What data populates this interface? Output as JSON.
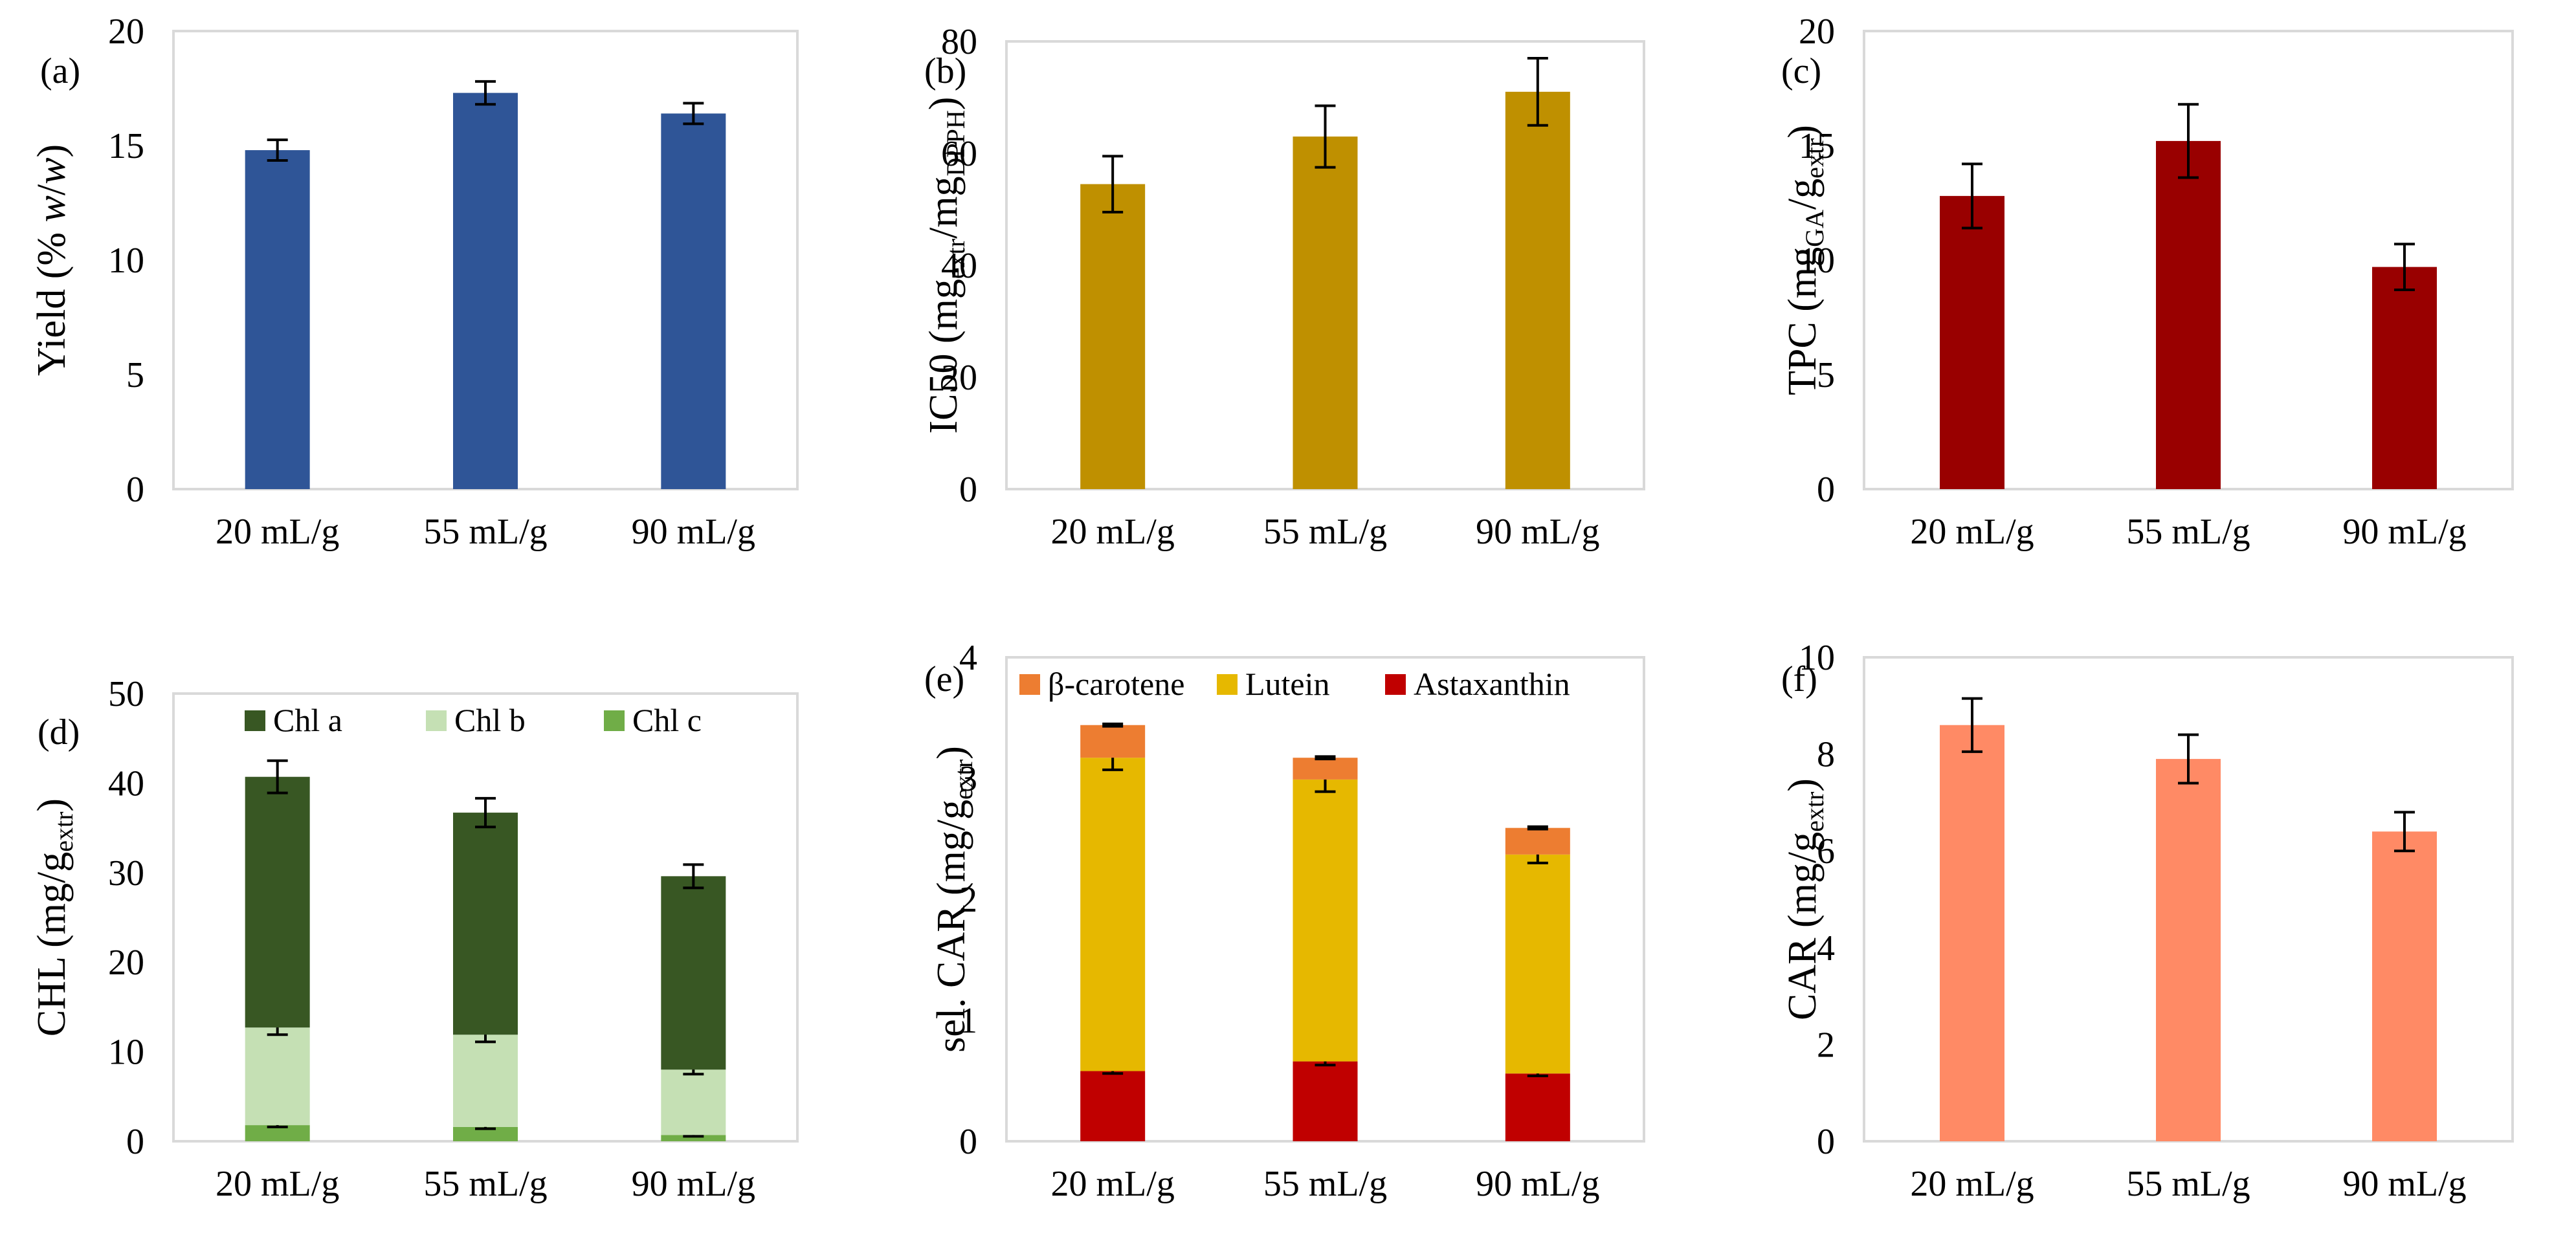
{
  "chart_data": [
    {
      "id": "a",
      "type": "bar",
      "panel_label": "(a)",
      "ylabel": [
        {
          "t": "Yield (% "
        },
        {
          "t": "w",
          "i": true
        },
        {
          "t": "/"
        },
        {
          "t": "w",
          "i": true
        },
        {
          "t": ")"
        }
      ],
      "categories": [
        "20 mL/g",
        "55 mL/g",
        "90 mL/g"
      ],
      "ylim": [
        0,
        20
      ],
      "yticks": [
        0,
        5,
        10,
        15,
        20
      ],
      "series": [
        {
          "name": "Yield",
          "color": "#2F5597",
          "values": [
            14.8,
            17.3,
            16.4
          ],
          "errors": [
            0.45,
            0.5,
            0.45
          ]
        }
      ]
    },
    {
      "id": "b",
      "type": "bar",
      "panel_label": "(b)",
      "ylabel": [
        {
          "t": "IC50 (mg"
        },
        {
          "t": "extr",
          "s": true
        },
        {
          "t": "/mg"
        },
        {
          "t": "DPPH",
          "s": true
        },
        {
          "t": ")"
        }
      ],
      "categories": [
        "20 mL/g",
        "55 mL/g",
        "90 mL/g"
      ],
      "ylim": [
        0,
        80
      ],
      "yticks": [
        0,
        20,
        40,
        60,
        80
      ],
      "series": [
        {
          "name": "IC50",
          "color": "#BF9000",
          "values": [
            54.5,
            63,
            71
          ],
          "errors": [
            5,
            5.5,
            6
          ]
        }
      ]
    },
    {
      "id": "c",
      "type": "bar",
      "panel_label": "(c)",
      "ylabel": [
        {
          "t": "TPC (mg"
        },
        {
          "t": "GA",
          "s": true
        },
        {
          "t": "/g"
        },
        {
          "t": "extr",
          "s": true
        },
        {
          "t": ")"
        }
      ],
      "categories": [
        "20 mL/g",
        "55 mL/g",
        "90 mL/g"
      ],
      "ylim": [
        0,
        20
      ],
      "yticks": [
        0,
        5,
        10,
        15,
        20
      ],
      "series": [
        {
          "name": "TPC",
          "color": "#990000",
          "values": [
            12.8,
            15.2,
            9.7
          ],
          "errors": [
            1.4,
            1.6,
            1.0
          ]
        }
      ]
    },
    {
      "id": "d",
      "type": "bar",
      "stacked": true,
      "panel_label": "(d)",
      "ylabel": [
        {
          "t": "CHL (mg/g"
        },
        {
          "t": "extr",
          "s": true
        },
        {
          "t": ")"
        }
      ],
      "categories": [
        "20 mL/g",
        "55 mL/g",
        "90 mL/g"
      ],
      "ylim": [
        0,
        50
      ],
      "yticks": [
        0,
        10,
        20,
        30,
        40,
        50
      ],
      "legend_position": "top",
      "legend_order": [
        2,
        1,
        0
      ],
      "series": [
        {
          "name": "Chl c",
          "color": "#70AD47",
          "values": [
            1.8,
            1.6,
            0.7
          ],
          "errors": [
            0.2,
            0.2,
            0.15
          ]
        },
        {
          "name": "Chl b",
          "color": "#C5E0B4",
          "values": [
            10.9,
            10.3,
            7.3
          ],
          "errors": [
            0.8,
            0.8,
            0.5
          ]
        },
        {
          "name": "Chl a",
          "color": "#385723",
          "values": [
            28.0,
            24.8,
            21.6
          ],
          "errors": [
            1.8,
            1.6,
            1.3
          ]
        }
      ]
    },
    {
      "id": "e",
      "type": "bar",
      "stacked": true,
      "panel_label": "(e)",
      "ylabel": [
        {
          "t": "sel. CAR (mg/g"
        },
        {
          "t": "extr",
          "s": true
        },
        {
          "t": ")"
        }
      ],
      "categories": [
        "20 mL/g",
        "55 mL/g",
        "90 mL/g"
      ],
      "ylim": [
        0,
        4
      ],
      "yticks": [
        0,
        1,
        2,
        3,
        4
      ],
      "legend_position": "top",
      "legend_order": [
        2,
        1,
        0
      ],
      "series": [
        {
          "name": "Astaxanthin",
          "color": "#C00000",
          "values": [
            0.58,
            0.66,
            0.56
          ],
          "errors": [
            0.02,
            0.03,
            0.02
          ]
        },
        {
          "name": "Lutein",
          "color": "#E6B800",
          "values": [
            2.59,
            2.33,
            1.81
          ],
          "errors": [
            0.1,
            0.1,
            0.07
          ]
        },
        {
          "name": "β-carotene",
          "color": "#ED7D31",
          "values": [
            0.27,
            0.18,
            0.22
          ],
          "errors": [
            0.01,
            0.01,
            0.01
          ]
        }
      ]
    },
    {
      "id": "f",
      "type": "bar",
      "panel_label": "(f)",
      "ylabel": [
        {
          "t": "CAR (mg/g"
        },
        {
          "t": "extr",
          "s": true
        },
        {
          "t": ")"
        }
      ],
      "categories": [
        "20 mL/g",
        "55 mL/g",
        "90 mL/g"
      ],
      "ylim": [
        0,
        10
      ],
      "yticks": [
        0,
        2,
        4,
        6,
        8,
        10
      ],
      "series": [
        {
          "name": "CAR",
          "color": "#FF8A65",
          "values": [
            8.6,
            7.9,
            6.4
          ],
          "errors": [
            0.55,
            0.5,
            0.4
          ]
        }
      ]
    }
  ]
}
